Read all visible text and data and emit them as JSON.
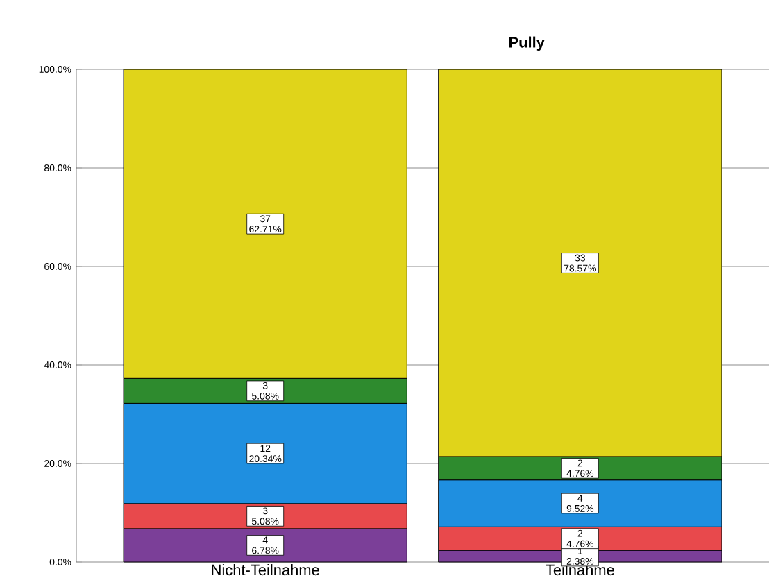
{
  "chart_data": {
    "type": "bar",
    "title": "Pully",
    "stacked": true,
    "categories": [
      "Nicht-Teilnahme",
      "Teilnahme"
    ],
    "series": [
      {
        "color": "#7b3f98",
        "values": [
          6.78,
          2.38
        ],
        "value_labels": [
          "4 6.78%",
          "1 2.38%"
        ]
      },
      {
        "color": "#e8494c",
        "values": [
          5.08,
          4.76
        ],
        "value_labels": [
          "3 5.08%",
          "2 4.76%"
        ]
      },
      {
        "color": "#1f8fe0",
        "values": [
          20.34,
          9.52
        ],
        "value_labels": [
          "12 20.34%",
          "4 9.52%"
        ]
      },
      {
        "color": "#2e8b2e",
        "values": [
          5.08,
          4.76
        ],
        "value_labels": [
          "3 5.08%",
          "2 4.76%"
        ]
      },
      {
        "color": "#e0d41a",
        "values": [
          62.71,
          78.57
        ],
        "value_labels": [
          "37 62.71%",
          "33 78.57%"
        ]
      }
    ],
    "ylim": [
      0,
      100
    ],
    "yticks": [
      {
        "value": 0,
        "label": "0.0%"
      },
      {
        "value": 20,
        "label": "20.0%"
      },
      {
        "value": 40,
        "label": "40.0%"
      },
      {
        "value": 60,
        "label": "60.0%"
      },
      {
        "value": 80,
        "label": "80.0%"
      },
      {
        "value": 100,
        "label": "100.0%"
      }
    ],
    "grid": "y"
  }
}
